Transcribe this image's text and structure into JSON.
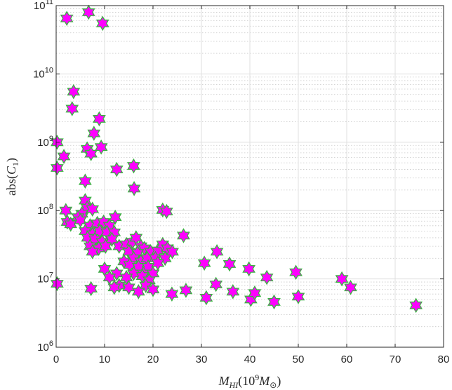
{
  "chart_data": {
    "type": "scatter",
    "xlabel": {
      "main": "M",
      "sub": "HI",
      "paren_open": "(10",
      "sup": "9",
      "unit": "M",
      "unit_sub": "⊙",
      "paren_close": ")"
    },
    "ylabel": {
      "prefix": "abs(",
      "main": "C",
      "sub": "1",
      "suffix": ")"
    },
    "xlim": [
      0,
      80
    ],
    "ylim": [
      1000000.0,
      100000000000.0
    ],
    "yscale": "log",
    "grid": true,
    "minor_grid": true,
    "marker": "hexagram",
    "x_ticks": [
      {
        "value": 0,
        "label": "0"
      },
      {
        "value": 10,
        "label": "10"
      },
      {
        "value": 20,
        "label": "20"
      },
      {
        "value": 30,
        "label": "30"
      },
      {
        "value": 40,
        "label": "40"
      },
      {
        "value": 50,
        "label": "50"
      },
      {
        "value": 60,
        "label": "60"
      },
      {
        "value": 70,
        "label": "70"
      },
      {
        "value": 80,
        "label": "80"
      }
    ],
    "y_ticks": [
      {
        "value": 1000000.0,
        "base": "10",
        "exp": "6"
      },
      {
        "value": 10000000.0,
        "base": "10",
        "exp": "7"
      },
      {
        "value": 100000000.0,
        "base": "10",
        "exp": "8"
      },
      {
        "value": 1000000000.0,
        "base": "10",
        "exp": "9"
      },
      {
        "value": 10000000000.0,
        "base": "10",
        "exp": "10"
      },
      {
        "value": 100000000000.0,
        "base": "10",
        "exp": "11"
      }
    ],
    "points": [
      {
        "x": 2.2,
        "y": 65000000000.0
      },
      {
        "x": 6.7,
        "y": 80000000000.0
      },
      {
        "x": 9.6,
        "y": 55000000000.0
      },
      {
        "x": 3.6,
        "y": 5500000000.0
      },
      {
        "x": 3.3,
        "y": 3100000000.0
      },
      {
        "x": 8.9,
        "y": 2200000000.0
      },
      {
        "x": 7.8,
        "y": 1350000000.0
      },
      {
        "x": 0.2,
        "y": 1000000000.0
      },
      {
        "x": 6.4,
        "y": 800000000.0
      },
      {
        "x": 9.3,
        "y": 850000000.0
      },
      {
        "x": 7.2,
        "y": 680000000.0
      },
      {
        "x": 1.6,
        "y": 620000000.0
      },
      {
        "x": 0.2,
        "y": 420000000.0
      },
      {
        "x": 12.5,
        "y": 400000000.0
      },
      {
        "x": 16.0,
        "y": 450000000.0
      },
      {
        "x": 6.0,
        "y": 270000000.0
      },
      {
        "x": 16.1,
        "y": 210000000.0
      },
      {
        "x": 6.0,
        "y": 140000000.0
      },
      {
        "x": 2.0,
        "y": 100000000.0
      },
      {
        "x": 22.0,
        "y": 102000000.0
      },
      {
        "x": 22.8,
        "y": 97000000.0
      },
      {
        "x": 6.4,
        "y": 110000000.0
      },
      {
        "x": 7.5,
        "y": 105000000.0
      },
      {
        "x": 5.3,
        "y": 90000000.0
      },
      {
        "x": 12.2,
        "y": 80000000.0
      },
      {
        "x": 4.5,
        "y": 80000000.0
      },
      {
        "x": 2.3,
        "y": 68000000.0
      },
      {
        "x": 3.0,
        "y": 63000000.0
      },
      {
        "x": 5.0,
        "y": 72000000.0
      },
      {
        "x": 7.0,
        "y": 60000000.0
      },
      {
        "x": 8.5,
        "y": 65000000.0
      },
      {
        "x": 9.8,
        "y": 68000000.0
      },
      {
        "x": 11.0,
        "y": 60000000.0
      },
      {
        "x": 6.0,
        "y": 50000000.0
      },
      {
        "x": 7.5,
        "y": 45000000.0
      },
      {
        "x": 9.0,
        "y": 50000000.0
      },
      {
        "x": 10.5,
        "y": 48000000.0
      },
      {
        "x": 12.0,
        "y": 48000000.0
      },
      {
        "x": 6.5,
        "y": 40000000.0
      },
      {
        "x": 8.0,
        "y": 38000000.0
      },
      {
        "x": 9.5,
        "y": 35000000.0
      },
      {
        "x": 11.5,
        "y": 38000000.0
      },
      {
        "x": 7.0,
        "y": 30000000.0
      },
      {
        "x": 8.8,
        "y": 28000000.0
      },
      {
        "x": 10.2,
        "y": 30000000.0
      },
      {
        "x": 7.5,
        "y": 25000000.0
      },
      {
        "x": 26.3,
        "y": 43000000.0
      },
      {
        "x": 13.0,
        "y": 30000000.0
      },
      {
        "x": 14.5,
        "y": 32000000.0
      },
      {
        "x": 15.8,
        "y": 35000000.0
      },
      {
        "x": 16.5,
        "y": 40000000.0
      },
      {
        "x": 17.5,
        "y": 30000000.0
      },
      {
        "x": 18.2,
        "y": 28000000.0
      },
      {
        "x": 15.0,
        "y": 25000000.0
      },
      {
        "x": 16.8,
        "y": 24000000.0
      },
      {
        "x": 19.5,
        "y": 25000000.0
      },
      {
        "x": 21.0,
        "y": 26000000.0
      },
      {
        "x": 22.0,
        "y": 32000000.0
      },
      {
        "x": 23.0,
        "y": 28000000.0
      },
      {
        "x": 24.0,
        "y": 25000000.0
      },
      {
        "x": 14.0,
        "y": 18000000.0
      },
      {
        "x": 16.0,
        "y": 20000000.0
      },
      {
        "x": 17.5,
        "y": 18000000.0
      },
      {
        "x": 18.8,
        "y": 20000000.0
      },
      {
        "x": 20.5,
        "y": 20000000.0
      },
      {
        "x": 22.5,
        "y": 20000000.0
      },
      {
        "x": 15.2,
        "y": 16000000.0
      },
      {
        "x": 17.0,
        "y": 15000000.0
      },
      {
        "x": 19.0,
        "y": 15000000.0
      },
      {
        "x": 21.0,
        "y": 17000000.0
      },
      {
        "x": 10.0,
        "y": 14000000.0
      },
      {
        "x": 12.5,
        "y": 12000000.0
      },
      {
        "x": 16.0,
        "y": 12000000.0
      },
      {
        "x": 18.0,
        "y": 12000000.0
      },
      {
        "x": 20.0,
        "y": 12000000.0
      },
      {
        "x": 11.0,
        "y": 10500000.0
      },
      {
        "x": 14.5,
        "y": 10500000.0
      },
      {
        "x": 17.8,
        "y": 11000000.0
      },
      {
        "x": 19.2,
        "y": 9500000.0
      },
      {
        "x": 13.0,
        "y": 8000000.0
      },
      {
        "x": 15.0,
        "y": 7500000.0
      },
      {
        "x": 12.0,
        "y": 7500000.0
      },
      {
        "x": 18.5,
        "y": 8000000.0
      },
      {
        "x": 20.0,
        "y": 7000000.0
      },
      {
        "x": 17.0,
        "y": 6500000.0
      },
      {
        "x": 0.2,
        "y": 8500000.0
      },
      {
        "x": 7.2,
        "y": 7200000.0
      },
      {
        "x": 23.9,
        "y": 6000000.0
      },
      {
        "x": 26.8,
        "y": 6800000.0
      },
      {
        "x": 30.6,
        "y": 17000000.0
      },
      {
        "x": 33.2,
        "y": 25000000.0
      },
      {
        "x": 35.8,
        "y": 16500000.0
      },
      {
        "x": 39.8,
        "y": 14000000.0
      },
      {
        "x": 43.5,
        "y": 10500000.0
      },
      {
        "x": 49.5,
        "y": 12500000.0
      },
      {
        "x": 59.0,
        "y": 10000000.0
      },
      {
        "x": 60.8,
        "y": 7500000.0
      },
      {
        "x": 74.3,
        "y": 4100000.0
      },
      {
        "x": 31.0,
        "y": 5300000.0
      },
      {
        "x": 33.0,
        "y": 8300000.0
      },
      {
        "x": 36.5,
        "y": 6500000.0
      },
      {
        "x": 40.2,
        "y": 5000000.0
      },
      {
        "x": 41.0,
        "y": 6200000.0
      },
      {
        "x": 45.0,
        "y": 4600000.0
      },
      {
        "x": 50.0,
        "y": 5500000.0
      }
    ],
    "colors": {
      "marker_fill": "#ff00ff",
      "marker_edge": "#3cb043",
      "grid": "#dfdfdf",
      "minor_grid": "#c8c8c8",
      "axis": "#262626"
    }
  }
}
